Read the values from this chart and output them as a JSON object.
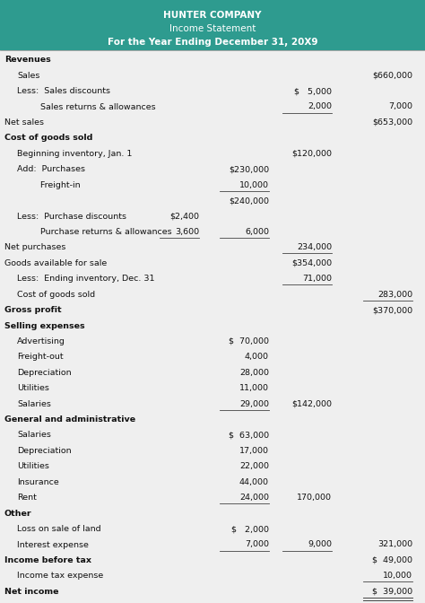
{
  "title_lines": [
    {
      "text": "HUNTER COMPANY",
      "bold": true
    },
    {
      "text": "Income Statement",
      "bold": false
    },
    {
      "text": "For the Year Ending December 31, 20X9",
      "bold": true
    }
  ],
  "header_bg": "#2e9b8f",
  "header_text_color": "#ffffff",
  "body_bg": "#efefef",
  "rows": [
    {
      "label": "Revenues",
      "c1": "",
      "c2": "",
      "c3": "",
      "c4": "",
      "lbold": true,
      "li": 0,
      "uc1": false,
      "uc2": false,
      "uc3": false,
      "uc4": false,
      "dc4": false
    },
    {
      "label": "Sales",
      "c1": "",
      "c2": "",
      "c3": "",
      "c4": "$660,000",
      "lbold": false,
      "li": 1,
      "uc1": false,
      "uc2": false,
      "uc3": false,
      "uc4": false,
      "dc4": false
    },
    {
      "label": "Less:  Sales discounts",
      "c1": "",
      "c2": "",
      "c3": "$   5,000",
      "c4": "",
      "lbold": false,
      "li": 1,
      "uc1": false,
      "uc2": false,
      "uc3": false,
      "uc4": false,
      "dc4": false
    },
    {
      "label": "    Sales returns & allowances",
      "c1": "",
      "c2": "",
      "c3": "2,000",
      "c4": "7,000",
      "lbold": false,
      "li": 2,
      "uc1": false,
      "uc2": false,
      "uc3": true,
      "uc4": false,
      "dc4": false
    },
    {
      "label": "Net sales",
      "c1": "",
      "c2": "",
      "c3": "",
      "c4": "$653,000",
      "lbold": false,
      "li": 0,
      "uc1": false,
      "uc2": false,
      "uc3": false,
      "uc4": false,
      "dc4": false
    },
    {
      "label": "Cost of goods sold",
      "c1": "",
      "c2": "",
      "c3": "",
      "c4": "",
      "lbold": true,
      "li": 0,
      "uc1": false,
      "uc2": false,
      "uc3": false,
      "uc4": false,
      "dc4": false
    },
    {
      "label": "Beginning inventory, Jan. 1",
      "c1": "",
      "c2": "",
      "c3": "$120,000",
      "c4": "",
      "lbold": false,
      "li": 1,
      "uc1": false,
      "uc2": false,
      "uc3": false,
      "uc4": false,
      "dc4": false
    },
    {
      "label": "Add:  Purchases",
      "c1": "",
      "c2": "$230,000",
      "c3": "",
      "c4": "",
      "lbold": false,
      "li": 1,
      "uc1": false,
      "uc2": false,
      "uc3": false,
      "uc4": false,
      "dc4": false
    },
    {
      "label": "    Freight-in",
      "c1": "",
      "c2": "10,000",
      "c3": "",
      "c4": "",
      "lbold": false,
      "li": 2,
      "uc1": false,
      "uc2": true,
      "uc3": false,
      "uc4": false,
      "dc4": false
    },
    {
      "label": "",
      "c1": "",
      "c2": "$240,000",
      "c3": "",
      "c4": "",
      "lbold": false,
      "li": 2,
      "uc1": false,
      "uc2": false,
      "uc3": false,
      "uc4": false,
      "dc4": false
    },
    {
      "label": "Less:  Purchase discounts",
      "c1": "$2,400",
      "c2": "",
      "c3": "",
      "c4": "",
      "lbold": false,
      "li": 1,
      "uc1": false,
      "uc2": false,
      "uc3": false,
      "uc4": false,
      "dc4": false
    },
    {
      "label": "    Purchase returns & allowances",
      "c1": "3,600",
      "c2": "6,000",
      "c3": "",
      "c4": "",
      "lbold": false,
      "li": 2,
      "uc1": true,
      "uc2": true,
      "uc3": false,
      "uc4": false,
      "dc4": false
    },
    {
      "label": "Net purchases",
      "c1": "",
      "c2": "",
      "c3": "234,000",
      "c4": "",
      "lbold": false,
      "li": 0,
      "uc1": false,
      "uc2": false,
      "uc3": true,
      "uc4": false,
      "dc4": false
    },
    {
      "label": "Goods available for sale",
      "c1": "",
      "c2": "",
      "c3": "$354,000",
      "c4": "",
      "lbold": false,
      "li": 0,
      "uc1": false,
      "uc2": false,
      "uc3": false,
      "uc4": false,
      "dc4": false
    },
    {
      "label": "Less:  Ending inventory, Dec. 31",
      "c1": "",
      "c2": "",
      "c3": "71,000",
      "c4": "",
      "lbold": false,
      "li": 1,
      "uc1": false,
      "uc2": false,
      "uc3": true,
      "uc4": false,
      "dc4": false
    },
    {
      "label": "Cost of goods sold",
      "c1": "",
      "c2": "",
      "c3": "",
      "c4": "283,000",
      "lbold": false,
      "li": 1,
      "uc1": false,
      "uc2": false,
      "uc3": false,
      "uc4": true,
      "dc4": false
    },
    {
      "label": "Gross profit",
      "c1": "",
      "c2": "",
      "c3": "",
      "c4": "$370,000",
      "lbold": true,
      "li": 0,
      "uc1": false,
      "uc2": false,
      "uc3": false,
      "uc4": false,
      "dc4": false
    },
    {
      "label": "Selling expenses",
      "c1": "",
      "c2": "",
      "c3": "",
      "c4": "",
      "lbold": true,
      "li": 0,
      "uc1": false,
      "uc2": false,
      "uc3": false,
      "uc4": false,
      "dc4": false
    },
    {
      "label": "Advertising",
      "c1": "",
      "c2": "$  70,000",
      "c3": "",
      "c4": "",
      "lbold": false,
      "li": 1,
      "uc1": false,
      "uc2": false,
      "uc3": false,
      "uc4": false,
      "dc4": false
    },
    {
      "label": "Freight-out",
      "c1": "",
      "c2": "4,000",
      "c3": "",
      "c4": "",
      "lbold": false,
      "li": 1,
      "uc1": false,
      "uc2": false,
      "uc3": false,
      "uc4": false,
      "dc4": false
    },
    {
      "label": "Depreciation",
      "c1": "",
      "c2": "28,000",
      "c3": "",
      "c4": "",
      "lbold": false,
      "li": 1,
      "uc1": false,
      "uc2": false,
      "uc3": false,
      "uc4": false,
      "dc4": false
    },
    {
      "label": "Utilities",
      "c1": "",
      "c2": "11,000",
      "c3": "",
      "c4": "",
      "lbold": false,
      "li": 1,
      "uc1": false,
      "uc2": false,
      "uc3": false,
      "uc4": false,
      "dc4": false
    },
    {
      "label": "Salaries",
      "c1": "",
      "c2": "29,000",
      "c3": "$142,000",
      "c4": "",
      "lbold": false,
      "li": 1,
      "uc1": false,
      "uc2": true,
      "uc3": false,
      "uc4": false,
      "dc4": false
    },
    {
      "label": "General and administrative",
      "c1": "",
      "c2": "",
      "c3": "",
      "c4": "",
      "lbold": true,
      "li": 0,
      "uc1": false,
      "uc2": false,
      "uc3": false,
      "uc4": false,
      "dc4": false
    },
    {
      "label": "Salaries",
      "c1": "",
      "c2": "$  63,000",
      "c3": "",
      "c4": "",
      "lbold": false,
      "li": 1,
      "uc1": false,
      "uc2": false,
      "uc3": false,
      "uc4": false,
      "dc4": false
    },
    {
      "label": "Depreciation",
      "c1": "",
      "c2": "17,000",
      "c3": "",
      "c4": "",
      "lbold": false,
      "li": 1,
      "uc1": false,
      "uc2": false,
      "uc3": false,
      "uc4": false,
      "dc4": false
    },
    {
      "label": "Utilities",
      "c1": "",
      "c2": "22,000",
      "c3": "",
      "c4": "",
      "lbold": false,
      "li": 1,
      "uc1": false,
      "uc2": false,
      "uc3": false,
      "uc4": false,
      "dc4": false
    },
    {
      "label": "Insurance",
      "c1": "",
      "c2": "44,000",
      "c3": "",
      "c4": "",
      "lbold": false,
      "li": 1,
      "uc1": false,
      "uc2": false,
      "uc3": false,
      "uc4": false,
      "dc4": false
    },
    {
      "label": "Rent",
      "c1": "",
      "c2": "24,000",
      "c3": "170,000",
      "c4": "",
      "lbold": false,
      "li": 1,
      "uc1": false,
      "uc2": true,
      "uc3": false,
      "uc4": false,
      "dc4": false
    },
    {
      "label": "Other",
      "c1": "",
      "c2": "",
      "c3": "",
      "c4": "",
      "lbold": true,
      "li": 0,
      "uc1": false,
      "uc2": false,
      "uc3": false,
      "uc4": false,
      "dc4": false
    },
    {
      "label": "Loss on sale of land",
      "c1": "",
      "c2": "$   2,000",
      "c3": "",
      "c4": "",
      "lbold": false,
      "li": 1,
      "uc1": false,
      "uc2": false,
      "uc3": false,
      "uc4": false,
      "dc4": false
    },
    {
      "label": "Interest expense",
      "c1": "",
      "c2": "7,000",
      "c3": "9,000",
      "c4": "321,000",
      "lbold": false,
      "li": 1,
      "uc1": false,
      "uc2": true,
      "uc3": true,
      "uc4": false,
      "dc4": false
    },
    {
      "label": "Income before tax",
      "c1": "",
      "c2": "",
      "c3": "",
      "c4": "$  49,000",
      "lbold": true,
      "li": 0,
      "uc1": false,
      "uc2": false,
      "uc3": false,
      "uc4": false,
      "dc4": false
    },
    {
      "label": "Income tax expense",
      "c1": "",
      "c2": "",
      "c3": "",
      "c4": "10,000",
      "lbold": false,
      "li": 1,
      "uc1": false,
      "uc2": false,
      "uc3": false,
      "uc4": true,
      "dc4": false
    },
    {
      "label": "Net income",
      "c1": "",
      "c2": "",
      "c3": "",
      "c4": "$  39,000",
      "lbold": true,
      "li": 0,
      "uc1": false,
      "uc2": false,
      "uc3": false,
      "uc4": false,
      "dc4": true
    }
  ]
}
